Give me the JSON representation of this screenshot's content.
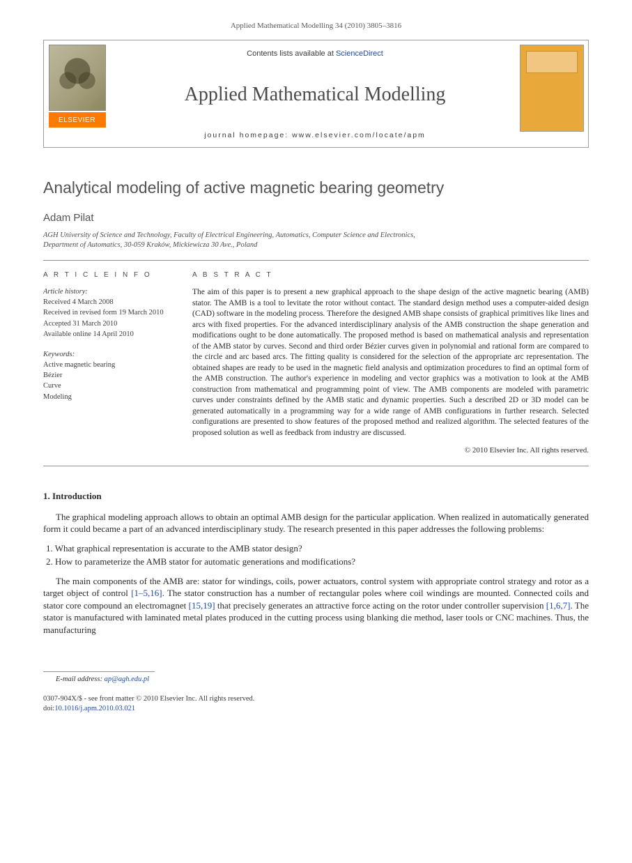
{
  "page": {
    "top_citation": "Applied Mathematical Modelling 34 (2010) 3805–3816",
    "contents_prefix": "Contents lists available at ",
    "contents_link": "ScienceDirect",
    "journal_title": "Applied Mathematical Modelling",
    "homepage_label": "journal homepage: www.elsevier.com/locate/apm",
    "elsevier_label": "ELSEVIER"
  },
  "article": {
    "title": "Analytical modeling of active magnetic bearing geometry",
    "author": "Adam Pilat",
    "affiliation_line1": "AGH University of Science and Technology, Faculty of Electrical Engineering, Automatics, Computer Science and Electronics,",
    "affiliation_line2": "Department of Automatics, 30-059 Kraków, Mickiewicza 30 Ave., Poland"
  },
  "info": {
    "head": "A R T I C L E   I N F O",
    "history_label": "Article history:",
    "received": "Received 4 March 2008",
    "revised": "Received in revised form 19 March 2010",
    "accepted": "Accepted 31 March 2010",
    "online": "Available online 14 April 2010",
    "keywords_label": "Keywords:",
    "kw1": "Active magnetic bearing",
    "kw2": "Bézier",
    "kw3": "Curve",
    "kw4": "Modeling"
  },
  "abstract": {
    "head": "A B S T R A C T",
    "text": "The aim of this paper is to present a new graphical approach to the shape design of the active magnetic bearing (AMB) stator. The AMB is a tool to levitate the rotor without contact. The standard design method uses a computer-aided design (CAD) software in the modeling process. Therefore the designed AMB shape consists of graphical primitives like lines and arcs with fixed properties. For the advanced interdisciplinary analysis of the AMB construction the shape generation and modifications ought to be done automatically. The proposed method is based on mathematical analysis and representation of the AMB stator by curves. Second and third order Bézier curves given in polynomial and rational form are compared to the circle and arc based arcs. The fitting quality is considered for the selection of the appropriate arc representation. The obtained shapes are ready to be used in the magnetic field analysis and optimization procedures to find an optimal form of the AMB construction. The author's experience in modeling and vector graphics was a motivation to look at the AMB construction from mathematical and programming point of view. The AMB components are modeled with parametric curves under constraints defined by the AMB static and dynamic properties. Such a described 2D or 3D model can be generated automatically in a programming way for a wide range of AMB configurations in further research. Selected configurations are presented to show features of the proposed method and realized algorithm. The selected features of the proposed solution as well as feedback from industry are discussed.",
    "copyright": "© 2010 Elsevier Inc. All rights reserved."
  },
  "section1": {
    "head": "1. Introduction",
    "p1": "The graphical modeling approach allows to obtain an optimal AMB design for the particular application. When realized in automatically generated form it could became a part of an advanced interdisciplinary study. The research presented in this paper addresses the following problems:",
    "q1": "1.  What graphical representation is accurate to the AMB stator design?",
    "q2": "2.  How to parameterize the AMB stator for automatic generations and modifications?",
    "p2a": "The main components of the AMB are: stator for windings, coils, power actuators, control system with appropriate control strategy and rotor as a target object of control ",
    "ref1": "[1–5,16]",
    "p2b": ". The stator construction has a number of rectangular poles where coil windings are mounted. Connected coils and stator core compound an electromagnet ",
    "ref2": "[15,19]",
    "p2c": " that precisely generates an attractive force acting on the rotor under controller supervision ",
    "ref3": "[1,6,7]",
    "p2d": ". The stator is manufactured with laminated metal plates produced in the cutting process using blanking die method, laser tools or CNC machines. Thus, the manufacturing"
  },
  "footer": {
    "email_label": "E-mail address: ",
    "email": "ap@agh.edu.pl",
    "meta1": "0307-904X/$ - see front matter © 2010 Elsevier Inc. All rights reserved.",
    "doi_label": "doi:",
    "doi": "10.1016/j.apm.2010.03.021"
  },
  "colors": {
    "link": "#1a4aa8",
    "elsevier_orange": "#ff7a00",
    "cover_bg": "#e9a93a",
    "rule": "#8f8f8f",
    "text": "#2a2a2a",
    "muted": "#525252"
  },
  "typography": {
    "body_pt": 13,
    "title_pt": 23,
    "journal_title_pt": 28,
    "small_pt": 10.5
  }
}
